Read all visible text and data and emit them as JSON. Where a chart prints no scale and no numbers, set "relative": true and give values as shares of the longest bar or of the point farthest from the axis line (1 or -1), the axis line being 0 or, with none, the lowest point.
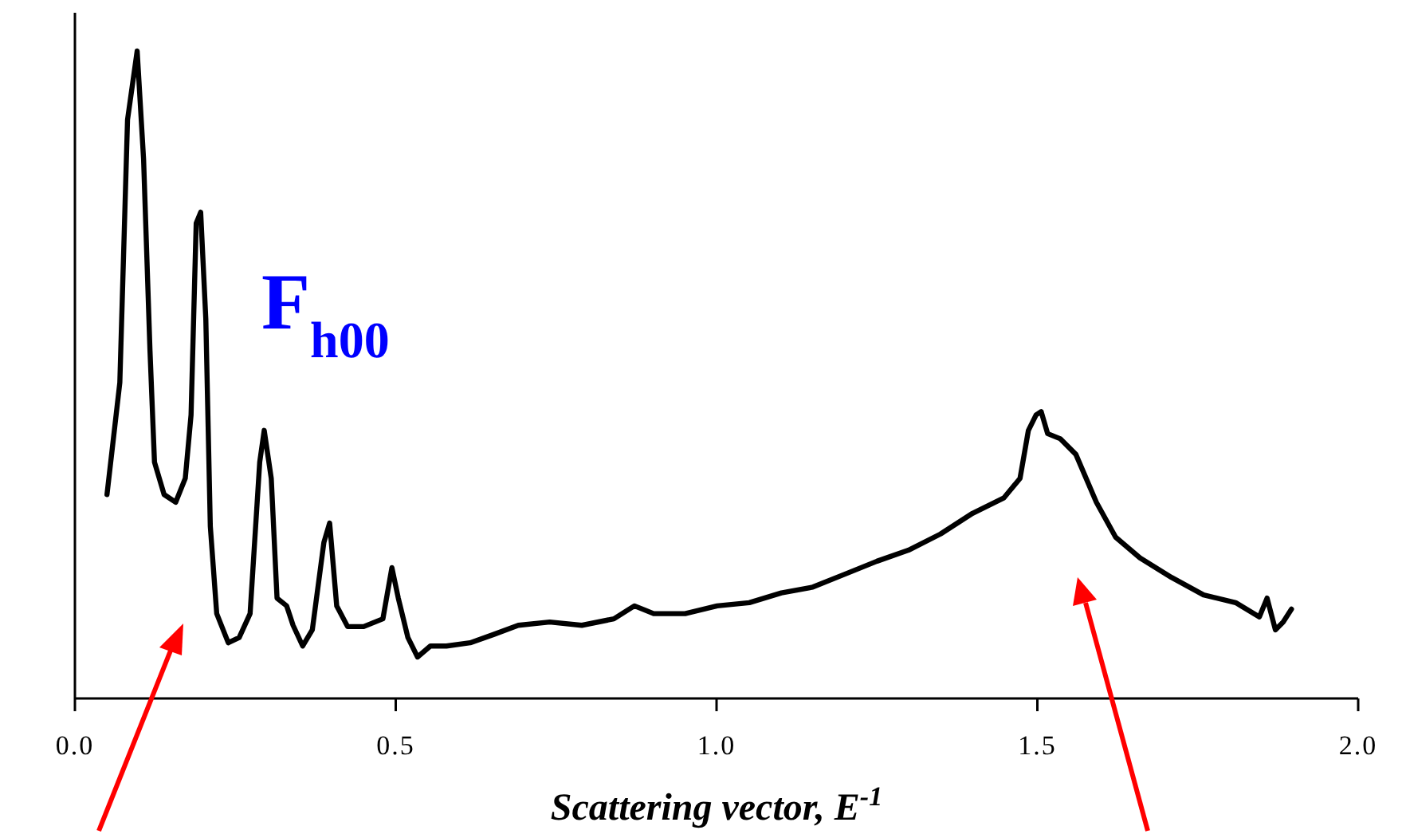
{
  "chart_data": {
    "type": "line",
    "relative": true,
    "xlabel": "Scattering vector, E$^{-1}$",
    "annotations": [
      "F$_{h00}$"
    ],
    "xlim": [
      0,
      2
    ],
    "xticks": [
      {
        "value": 0,
        "label": "0.0"
      },
      {
        "value": 0.5,
        "label": "0.5"
      },
      {
        "value": 1,
        "label": "1.0"
      },
      {
        "value": 1.5,
        "label": "1.5"
      },
      {
        "value": 2,
        "label": "2.0"
      }
    ],
    "grid": false,
    "marker": "none",
    "line_style": "solid",
    "series": [
      {
        "color": "#000000",
        "x": [
          0.05,
          0.07,
          0.082,
          0.097,
          0.107,
          0.117,
          0.124,
          0.139,
          0.157,
          0.172,
          0.181,
          0.189,
          0.196,
          0.204,
          0.211,
          0.221,
          0.239,
          0.256,
          0.273,
          0.288,
          0.295,
          0.306,
          0.315,
          0.33,
          0.34,
          0.355,
          0.37,
          0.388,
          0.397,
          0.408,
          0.425,
          0.45,
          0.48,
          0.494,
          0.504,
          0.519,
          0.534,
          0.554,
          0.579,
          0.616,
          0.653,
          0.691,
          0.74,
          0.79,
          0.84,
          0.872,
          0.902,
          0.951,
          1.001,
          1.051,
          1.101,
          1.15,
          1.2,
          1.25,
          1.299,
          1.349,
          1.399,
          1.448,
          1.473,
          1.486,
          1.498,
          1.506,
          1.516,
          1.536,
          1.56,
          1.592,
          1.622,
          1.66,
          1.709,
          1.759,
          1.809,
          1.846,
          1.858,
          1.871,
          1.883,
          1.896
        ],
        "values": [
          0.315,
          0.488,
          0.894,
          1,
          0.833,
          0.537,
          0.365,
          0.315,
          0.303,
          0.34,
          0.438,
          0.734,
          0.751,
          0.586,
          0.266,
          0.131,
          0.086,
          0.094,
          0.131,
          0.365,
          0.414,
          0.34,
          0.155,
          0.143,
          0.113,
          0.081,
          0.106,
          0.241,
          0.271,
          0.143,
          0.111,
          0.111,
          0.123,
          0.202,
          0.155,
          0.094,
          0.064,
          0.081,
          0.081,
          0.086,
          0.099,
          0.113,
          0.118,
          0.113,
          0.123,
          0.143,
          0.131,
          0.131,
          0.143,
          0.148,
          0.163,
          0.172,
          0.192,
          0.212,
          0.229,
          0.254,
          0.286,
          0.31,
          0.34,
          0.414,
          0.438,
          0.443,
          0.409,
          0.401,
          0.377,
          0.303,
          0.249,
          0.217,
          0.187,
          0.16,
          0.148,
          0.126,
          0.155,
          0.106,
          0.118,
          0.138
        ]
      }
    ]
  }
}
